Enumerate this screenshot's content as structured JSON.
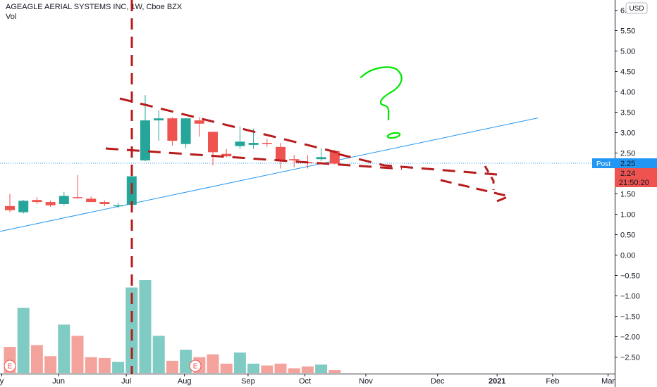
{
  "header": {
    "symbol": "AGEAGLE AERIAL SYSTEMS INC, 1W, Cboe BZX",
    "vol_label": "Vol",
    "currency_button": "USD"
  },
  "chart_data": {
    "type": "candlestick",
    "price_axis": {
      "ticks": [
        "6.00",
        "5.50",
        "5.00",
        "4.50",
        "4.00",
        "3.50",
        "3.00",
        "2.50",
        "2.00",
        "1.50",
        "1.00",
        "0.50",
        "0.00",
        "−0.50",
        "−1.00",
        "−1.50",
        "−2.00",
        "−2.50"
      ],
      "range": [
        -2.75,
        6.05
      ],
      "top_tick_visible": "6."
    },
    "time_axis": {
      "labels": [
        "y",
        "Jun",
        "Jul",
        "Aug",
        "Sep",
        "Oct",
        "Nov",
        "Dec",
        "2021",
        "Feb",
        "Mar"
      ],
      "highlighted": "2021",
      "label_week_index": [
        -0.6,
        3.6,
        8.6,
        12.9,
        17.6,
        21.8,
        26.3,
        31.6,
        36.0,
        40.1,
        44.2
      ]
    },
    "candles": [
      {
        "o": 1.2,
        "h": 1.5,
        "l": 1.05,
        "c": 1.1
      },
      {
        "o": 1.05,
        "h": 1.35,
        "l": 1.02,
        "c": 1.33
      },
      {
        "o": 1.35,
        "h": 1.42,
        "l": 1.25,
        "c": 1.3
      },
      {
        "o": 1.3,
        "h": 1.34,
        "l": 1.18,
        "c": 1.22
      },
      {
        "o": 1.25,
        "h": 1.55,
        "l": 1.22,
        "c": 1.45
      },
      {
        "o": 1.42,
        "h": 1.96,
        "l": 1.38,
        "c": 1.4
      },
      {
        "o": 1.38,
        "h": 1.44,
        "l": 1.3,
        "c": 1.3
      },
      {
        "o": 1.3,
        "h": 1.34,
        "l": 1.2,
        "c": 1.25
      },
      {
        "o": 1.22,
        "h": 1.28,
        "l": 1.15,
        "c": 1.22
      },
      {
        "o": 1.23,
        "h": 1.97,
        "l": 1.2,
        "c": 1.93
      },
      {
        "o": 2.32,
        "h": 3.92,
        "l": 2.3,
        "c": 3.3
      },
      {
        "o": 3.3,
        "h": 3.55,
        "l": 2.8,
        "c": 3.35
      },
      {
        "o": 3.35,
        "h": 3.38,
        "l": 2.68,
        "c": 2.8
      },
      {
        "o": 2.72,
        "h": 3.35,
        "l": 2.62,
        "c": 3.35
      },
      {
        "o": 3.3,
        "h": 3.38,
        "l": 2.9,
        "c": 3.22
      },
      {
        "o": 3.02,
        "h": 3.02,
        "l": 2.2,
        "c": 2.52
      },
      {
        "o": 2.48,
        "h": 2.6,
        "l": 2.4,
        "c": 2.42
      },
      {
        "o": 2.67,
        "h": 3.15,
        "l": 2.6,
        "c": 2.78
      },
      {
        "o": 2.7,
        "h": 3.1,
        "l": 2.6,
        "c": 2.75
      },
      {
        "o": 2.75,
        "h": 2.85,
        "l": 2.65,
        "c": 2.74
      },
      {
        "o": 2.65,
        "h": 2.75,
        "l": 2.12,
        "c": 2.32
      },
      {
        "o": 2.35,
        "h": 2.45,
        "l": 2.15,
        "c": 2.32
      },
      {
        "o": 2.28,
        "h": 2.45,
        "l": 2.12,
        "c": 2.25
      },
      {
        "o": 2.35,
        "h": 2.62,
        "l": 2.3,
        "c": 2.4
      },
      {
        "o": 2.55,
        "h": 2.58,
        "l": 2.22,
        "c": 2.24
      }
    ],
    "volume": [
      0.28,
      0.7,
      0.3,
      0.18,
      0.52,
      0.4,
      0.17,
      0.16,
      0.12,
      0.92,
      1.0,
      0.4,
      0.13,
      0.25,
      0.17,
      0.2,
      0.1,
      0.22,
      0.1,
      0.08,
      0.1,
      0.05,
      0.07,
      0.09,
      0.03
    ],
    "earnings_markers": [
      {
        "week": 0,
        "label": "E"
      },
      {
        "week": 13.7,
        "label": "E"
      }
    ],
    "price_tags": [
      {
        "label": "Post",
        "value": "2.25",
        "color": "#2196f3"
      },
      {
        "value": "2.24",
        "color": "#ef5350"
      },
      {
        "value": "21:50:20",
        "color": "#ef5350"
      }
    ],
    "last_price_line": 2.25,
    "annotations": {
      "question_mark_color": "#00e600",
      "trend_line_color": "#2196f3",
      "dashed_color": "#b71c1c"
    },
    "colors": {
      "up": "#26a69a",
      "down": "#ef5350",
      "vol_up": "#80cbc4",
      "vol_down": "#f4a39c"
    }
  }
}
